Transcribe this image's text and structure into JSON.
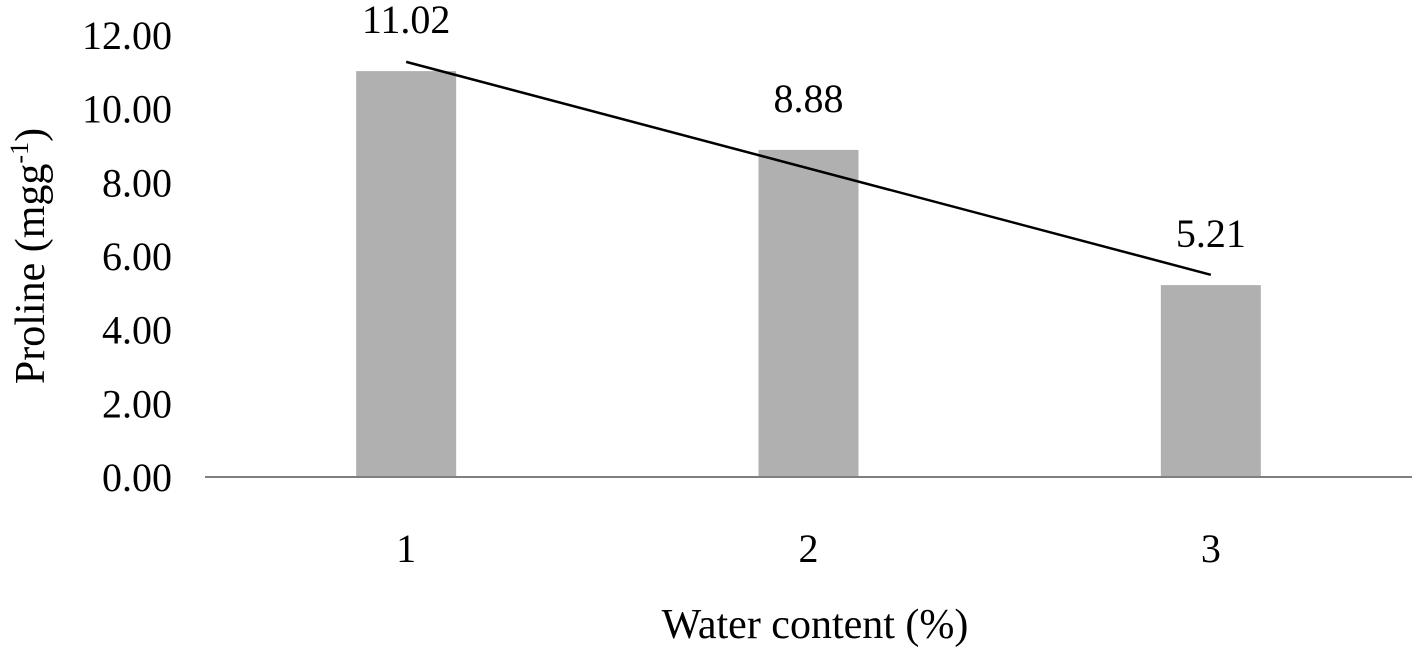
{
  "chart_data": {
    "type": "bar",
    "categories": [
      "1",
      "2",
      "3"
    ],
    "values": [
      11.02,
      8.88,
      5.21
    ],
    "data_labels": [
      "11.02",
      "8.88",
      "5.21"
    ],
    "xlabel": "Water content (%)",
    "ylabel": {
      "text": "Proline (mgg",
      "superscript": "-1",
      "suffix": ")"
    },
    "ylim": [
      0,
      12
    ],
    "yticks": [
      0,
      2,
      4,
      6,
      8,
      10,
      12
    ],
    "ytick_labels": [
      "0.00",
      "2.00",
      "4.00",
      "6.00",
      "8.00",
      "10.00",
      "12.00"
    ],
    "grid": false,
    "legend": "none",
    "trendline": {
      "type": "linear",
      "y_start": 11.27,
      "y_end": 5.49
    },
    "colors": {
      "bar": "#b0b0b0",
      "axis": "#7f7f7f",
      "trendline": "#000000"
    }
  }
}
